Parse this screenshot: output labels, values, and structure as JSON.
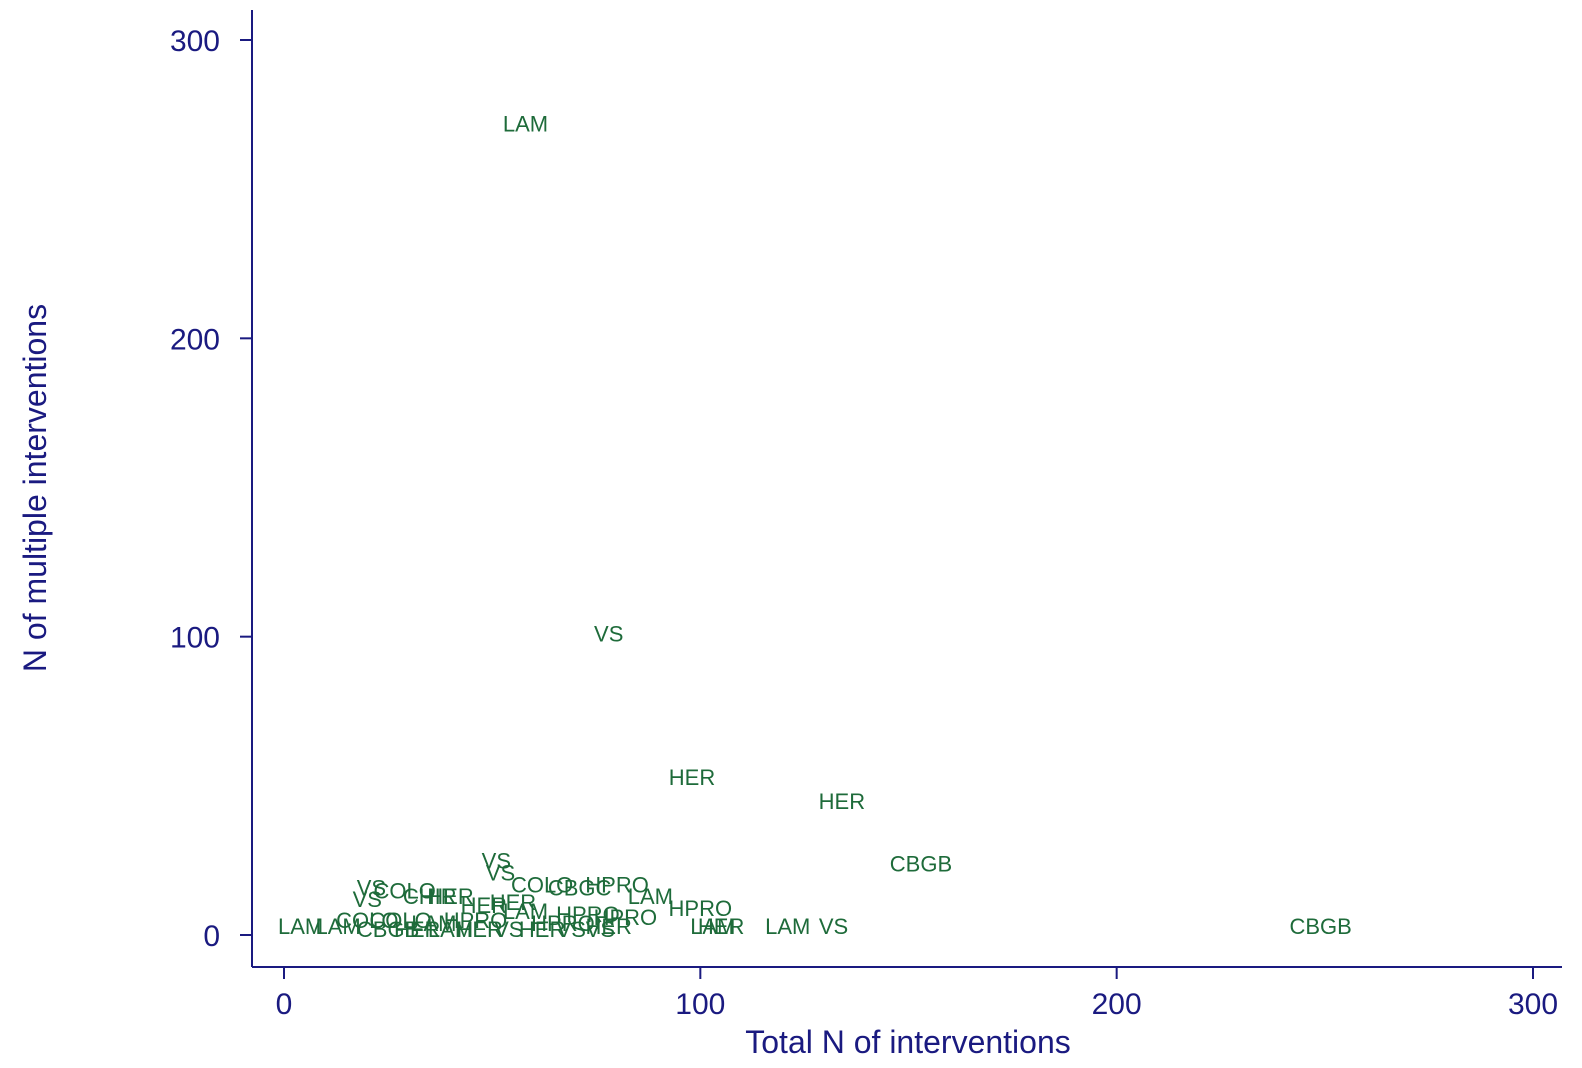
{
  "chart_data": {
    "type": "scatter",
    "title": "",
    "xlabel": "Total N of interventions",
    "ylabel": "N of multiple interventions",
    "xlim": [
      -8,
      300
    ],
    "ylim": [
      -10,
      310
    ],
    "xticks": [
      0,
      100,
      200,
      300
    ],
    "yticks": [
      0,
      100,
      200,
      300
    ],
    "grid": false,
    "marker": "label-only",
    "colors": {
      "axis": "#1a1a80",
      "marker_label": "#1e6b3a"
    },
    "points": [
      {
        "x": 58,
        "y": 272,
        "label": "LAM"
      },
      {
        "x": 78,
        "y": 101,
        "label": "VS"
      },
      {
        "x": 98,
        "y": 53,
        "label": "HER"
      },
      {
        "x": 134,
        "y": 45,
        "label": "HER"
      },
      {
        "x": 153,
        "y": 24,
        "label": "CBGB"
      },
      {
        "x": 249,
        "y": 3,
        "label": "CBGB"
      },
      {
        "x": 121,
        "y": 3,
        "label": "LAM"
      },
      {
        "x": 132,
        "y": 3,
        "label": "VS"
      },
      {
        "x": 103,
        "y": 3,
        "label": "LAM"
      },
      {
        "x": 105,
        "y": 3,
        "label": "HER"
      },
      {
        "x": 100,
        "y": 9,
        "label": "HPRO"
      },
      {
        "x": 88,
        "y": 13,
        "label": "LAM"
      },
      {
        "x": 80,
        "y": 17,
        "label": "HPRO"
      },
      {
        "x": 71,
        "y": 16,
        "label": "CBGC"
      },
      {
        "x": 62,
        "y": 17,
        "label": "COLO"
      },
      {
        "x": 51,
        "y": 25,
        "label": "VS"
      },
      {
        "x": 52,
        "y": 21,
        "label": "VS"
      },
      {
        "x": 21,
        "y": 16,
        "label": "VS"
      },
      {
        "x": 29,
        "y": 15,
        "label": "COLO"
      },
      {
        "x": 20,
        "y": 12,
        "label": "VS"
      },
      {
        "x": 35,
        "y": 13,
        "label": "CHIR"
      },
      {
        "x": 40,
        "y": 13,
        "label": "HER"
      },
      {
        "x": 55,
        "y": 11,
        "label": "HER"
      },
      {
        "x": 48,
        "y": 10,
        "label": "HER"
      },
      {
        "x": 58,
        "y": 8,
        "label": "LAM"
      },
      {
        "x": 73,
        "y": 7,
        "label": "HPRO"
      },
      {
        "x": 82,
        "y": 6,
        "label": "HPRO"
      },
      {
        "x": 20,
        "y": 5,
        "label": "COLO"
      },
      {
        "x": 28,
        "y": 5,
        "label": "COLO"
      },
      {
        "x": 36,
        "y": 4,
        "label": "LAM"
      },
      {
        "x": 46,
        "y": 5,
        "label": "HPRO"
      },
      {
        "x": 67,
        "y": 4,
        "label": "HPRO"
      },
      {
        "x": 78,
        "y": 3,
        "label": "HER"
      },
      {
        "x": 4,
        "y": 3,
        "label": "LAM"
      },
      {
        "x": 13,
        "y": 3,
        "label": "LAM"
      },
      {
        "x": 25,
        "y": 2,
        "label": "CBGB"
      },
      {
        "x": 32,
        "y": 2,
        "label": "HER"
      },
      {
        "x": 40,
        "y": 2,
        "label": "LAM"
      },
      {
        "x": 47,
        "y": 2,
        "label": "HER"
      },
      {
        "x": 54,
        "y": 2,
        "label": "VS"
      },
      {
        "x": 62,
        "y": 2,
        "label": "HER"
      },
      {
        "x": 69,
        "y": 2,
        "label": "VS"
      },
      {
        "x": 76,
        "y": 2,
        "label": "VS"
      }
    ]
  }
}
